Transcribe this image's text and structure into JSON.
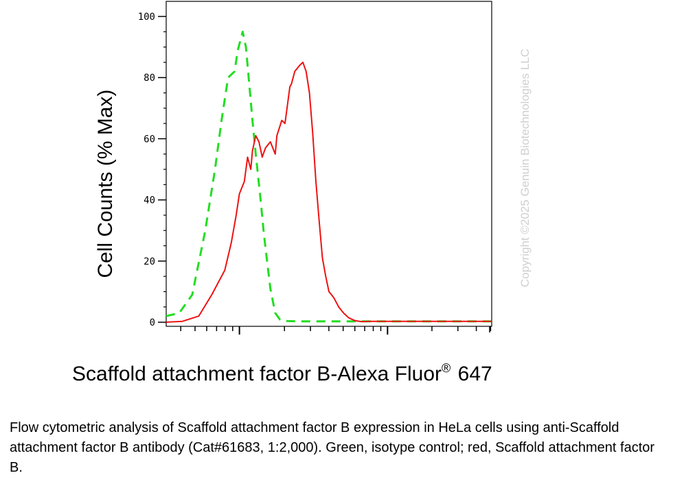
{
  "chart_data": {
    "type": "line",
    "title": "",
    "xlabel_main": "Scaffold attachment factor B-Alexa Fluor",
    "xlabel_sup": "®",
    "xlabel_tail": " 647",
    "ylabel": "Cell Counts (% Max)",
    "ylim": [
      0,
      100
    ],
    "yticks": [
      "0",
      "20",
      "40",
      "60",
      "80",
      "100"
    ],
    "xscale": "log",
    "xlim": [
      0,
      1
    ],
    "grid": false,
    "legend": "none",
    "series": [
      {
        "color": "#22dd22",
        "style": "dashed",
        "x": [
          0.0,
          0.04,
          0.08,
          0.12,
          0.15,
          0.17,
          0.19,
          0.21,
          0.22,
          0.235,
          0.245,
          0.255,
          0.265,
          0.275,
          0.29,
          0.3,
          0.31,
          0.32,
          0.335,
          0.35,
          0.37,
          0.4,
          0.5,
          0.6,
          0.8,
          1.0
        ],
        "y": [
          2,
          3,
          9,
          30,
          50,
          66,
          80,
          82,
          89,
          95,
          90,
          78,
          66,
          55,
          40,
          29,
          20,
          11,
          3,
          0.8,
          0.4,
          0.3,
          0.3,
          0.3,
          0.3,
          0.3
        ]
      },
      {
        "color": "#ee1111",
        "style": "solid",
        "x": [
          0.0,
          0.05,
          0.1,
          0.14,
          0.18,
          0.2,
          0.215,
          0.225,
          0.24,
          0.25,
          0.26,
          0.265,
          0.275,
          0.285,
          0.295,
          0.305,
          0.32,
          0.335,
          0.34,
          0.355,
          0.365,
          0.38,
          0.385,
          0.395,
          0.41,
          0.42,
          0.43,
          0.44,
          0.45,
          0.46,
          0.47,
          0.48,
          0.49,
          0.5,
          0.515,
          0.53,
          0.545,
          0.56,
          0.58,
          0.6,
          0.63,
          0.66,
          0.7,
          0.8,
          1.0
        ],
        "y": [
          0,
          0.3,
          2,
          9,
          17,
          26,
          35,
          42,
          46,
          54,
          50,
          56,
          61,
          59,
          54,
          57,
          59,
          55,
          61,
          66,
          65,
          77,
          78,
          82,
          84,
          85,
          82,
          75,
          62,
          46,
          33,
          21,
          15,
          10,
          8,
          5,
          3,
          1.5,
          0.5,
          0.2,
          0.3,
          0.3,
          0.3,
          0.3,
          0.3
        ]
      }
    ]
  },
  "watermark": "Copyright ©2025 Genuin Biotechnologies LLC",
  "caption": "Flow cytometric analysis of Scaffold attachment factor B expression in HeLa cells using anti-Scaffold attachment factor B antibody (Cat#61683, 1:2,000). Green, isotype control; red, Scaffold attachment factor B."
}
